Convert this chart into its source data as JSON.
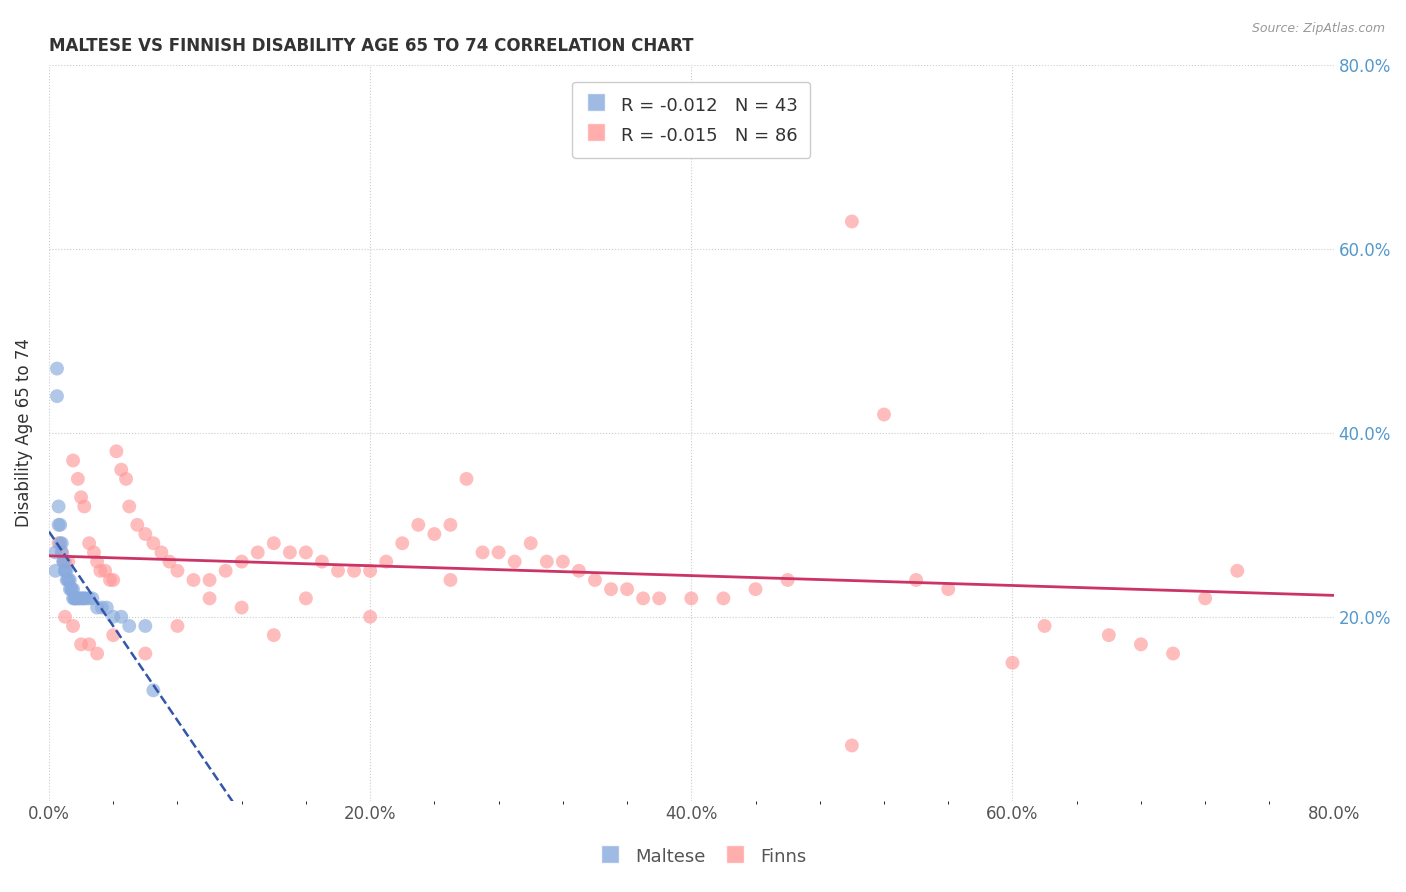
{
  "title": "MALTESE VS FINNISH DISABILITY AGE 65 TO 74 CORRELATION CHART",
  "source": "Source: ZipAtlas.com",
  "ylabel": "Disability Age 65 to 74",
  "xlim": [
    0.0,
    0.8
  ],
  "ylim": [
    0.0,
    0.8
  ],
  "xtick_labels": [
    "0.0%",
    "",
    "",
    "",
    "",
    "20.0%",
    "",
    "",
    "",
    "",
    "40.0%",
    "",
    "",
    "",
    "",
    "60.0%",
    "",
    "",
    "",
    "",
    "80.0%"
  ],
  "xtick_vals": [
    0.0,
    0.04,
    0.08,
    0.12,
    0.16,
    0.2,
    0.24,
    0.28,
    0.32,
    0.36,
    0.4,
    0.44,
    0.48,
    0.52,
    0.56,
    0.6,
    0.64,
    0.68,
    0.72,
    0.76,
    0.8
  ],
  "xtick_major_labels": [
    "0.0%",
    "20.0%",
    "40.0%",
    "60.0%",
    "80.0%"
  ],
  "xtick_major_vals": [
    0.0,
    0.2,
    0.4,
    0.6,
    0.8
  ],
  "ytick_vals": [
    0.2,
    0.4,
    0.6,
    0.8
  ],
  "ytick_labels": [
    "20.0%",
    "40.0%",
    "60.0%",
    "80.0%"
  ],
  "maltese_color": "#88AADD",
  "finns_color": "#FF9999",
  "maltese_trend_color": "#3355AA",
  "finns_trend_color": "#CC3366",
  "background_color": "#FFFFFF",
  "grid_color": "#CCCCCC",
  "maltese_x": [
    0.004,
    0.004,
    0.005,
    0.005,
    0.006,
    0.006,
    0.007,
    0.007,
    0.008,
    0.008,
    0.009,
    0.009,
    0.01,
    0.01,
    0.011,
    0.011,
    0.012,
    0.012,
    0.013,
    0.013,
    0.014,
    0.014,
    0.015,
    0.015,
    0.016,
    0.016,
    0.017,
    0.018,
    0.019,
    0.02,
    0.021,
    0.022,
    0.023,
    0.025,
    0.027,
    0.03,
    0.033,
    0.036,
    0.04,
    0.045,
    0.05,
    0.06,
    0.065
  ],
  "maltese_y": [
    0.27,
    0.25,
    0.47,
    0.44,
    0.32,
    0.3,
    0.3,
    0.28,
    0.28,
    0.27,
    0.26,
    0.26,
    0.25,
    0.25,
    0.25,
    0.24,
    0.24,
    0.24,
    0.24,
    0.23,
    0.23,
    0.23,
    0.23,
    0.22,
    0.22,
    0.22,
    0.22,
    0.22,
    0.22,
    0.22,
    0.22,
    0.22,
    0.22,
    0.22,
    0.22,
    0.21,
    0.21,
    0.21,
    0.2,
    0.2,
    0.19,
    0.19,
    0.12
  ],
  "finns_x": [
    0.006,
    0.008,
    0.01,
    0.012,
    0.015,
    0.018,
    0.02,
    0.022,
    0.025,
    0.028,
    0.03,
    0.032,
    0.035,
    0.038,
    0.04,
    0.042,
    0.045,
    0.048,
    0.05,
    0.055,
    0.06,
    0.065,
    0.07,
    0.075,
    0.08,
    0.09,
    0.1,
    0.11,
    0.12,
    0.13,
    0.14,
    0.15,
    0.16,
    0.17,
    0.18,
    0.19,
    0.2,
    0.21,
    0.22,
    0.23,
    0.24,
    0.25,
    0.26,
    0.27,
    0.28,
    0.29,
    0.3,
    0.31,
    0.32,
    0.33,
    0.34,
    0.35,
    0.36,
    0.37,
    0.38,
    0.4,
    0.42,
    0.44,
    0.46,
    0.5,
    0.52,
    0.54,
    0.56,
    0.62,
    0.66,
    0.68,
    0.7,
    0.72,
    0.74,
    0.01,
    0.015,
    0.02,
    0.025,
    0.03,
    0.04,
    0.06,
    0.08,
    0.1,
    0.12,
    0.14,
    0.16,
    0.2,
    0.25,
    0.5,
    0.6
  ],
  "finns_y": [
    0.28,
    0.27,
    0.26,
    0.26,
    0.37,
    0.35,
    0.33,
    0.32,
    0.28,
    0.27,
    0.26,
    0.25,
    0.25,
    0.24,
    0.24,
    0.38,
    0.36,
    0.35,
    0.32,
    0.3,
    0.29,
    0.28,
    0.27,
    0.26,
    0.25,
    0.24,
    0.24,
    0.25,
    0.26,
    0.27,
    0.28,
    0.27,
    0.27,
    0.26,
    0.25,
    0.25,
    0.25,
    0.26,
    0.28,
    0.3,
    0.29,
    0.3,
    0.35,
    0.27,
    0.27,
    0.26,
    0.28,
    0.26,
    0.26,
    0.25,
    0.24,
    0.23,
    0.23,
    0.22,
    0.22,
    0.22,
    0.22,
    0.23,
    0.24,
    0.63,
    0.42,
    0.24,
    0.23,
    0.19,
    0.18,
    0.17,
    0.16,
    0.22,
    0.25,
    0.2,
    0.19,
    0.17,
    0.17,
    0.16,
    0.18,
    0.16,
    0.19,
    0.22,
    0.21,
    0.18,
    0.22,
    0.2,
    0.24,
    0.06,
    0.15
  ]
}
